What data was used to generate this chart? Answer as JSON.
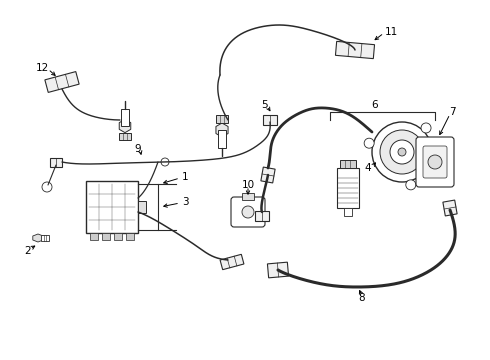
{
  "bg_color": "#ffffff",
  "line_color": "#2a2a2a",
  "figsize": [
    4.9,
    3.6
  ],
  "dpi": 100
}
